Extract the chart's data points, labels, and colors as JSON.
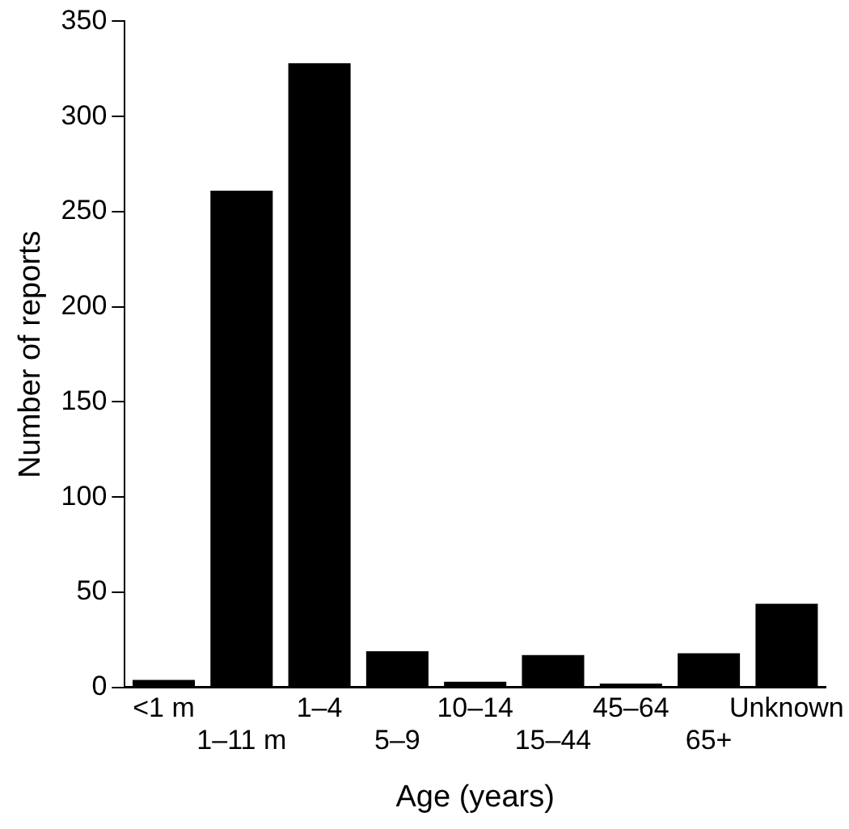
{
  "chart_data": {
    "type": "bar",
    "xlabel": "Age (years)",
    "ylabel": "Number of reports",
    "categories": [
      "<1 m",
      "1–11 m",
      "1–4",
      "5–9",
      "10–14",
      "15–44",
      "45–64",
      "65+",
      "Unknown"
    ],
    "values": [
      4,
      261,
      328,
      19,
      3,
      17,
      2,
      18,
      44
    ],
    "color": "#000000",
    "ylim": [
      0,
      350
    ],
    "yticks": [
      0,
      50,
      100,
      150,
      200,
      250,
      300,
      350
    ],
    "grid": false,
    "legend": false
  }
}
